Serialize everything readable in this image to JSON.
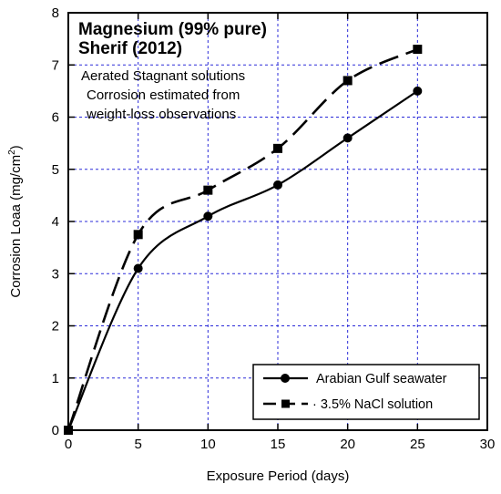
{
  "chart_data": {
    "type": "line",
    "title": "Magnesium (99% pure)",
    "subtitle": "Sherif (2012)",
    "annotations": [
      "Aerated Stagnant solutions",
      "Corrosion estimated from",
      "weight-loss observations"
    ],
    "xlabel": "Exposure Period (days)",
    "ylabel": "Corrosion Loaa (mg/cm",
    "ylabel_superscript": "2",
    "ylabel_suffix": ")",
    "xlim": [
      0,
      30
    ],
    "ylim": [
      0,
      8
    ],
    "xticks": [
      "0",
      "5",
      "10",
      "15",
      "20",
      "25",
      "30"
    ],
    "yticks": [
      "0",
      "1",
      "2",
      "3",
      "4",
      "5",
      "6",
      "7",
      "8"
    ],
    "grid": true,
    "legend_position": "bottom-right",
    "series": [
      {
        "name": "Arabian Gulf seawater",
        "marker": "circle",
        "line_style": "solid",
        "color": "#000000",
        "x": [
          0,
          5,
          10,
          15,
          20,
          25
        ],
        "y": [
          0,
          3.1,
          4.1,
          4.7,
          5.6,
          6.5
        ]
      },
      {
        "name": "3.5% NaCl solution",
        "legend_label": "· 3.5% NaCl solution",
        "marker": "square",
        "line_style": "dashed",
        "color": "#000000",
        "x": [
          0,
          5,
          10,
          15,
          20,
          25
        ],
        "y": [
          0,
          3.75,
          4.6,
          5.4,
          6.7,
          7.3
        ]
      }
    ]
  },
  "colors": {
    "grid": "#2b2bd9",
    "axes": "#000000",
    "background": "#ffffff"
  }
}
